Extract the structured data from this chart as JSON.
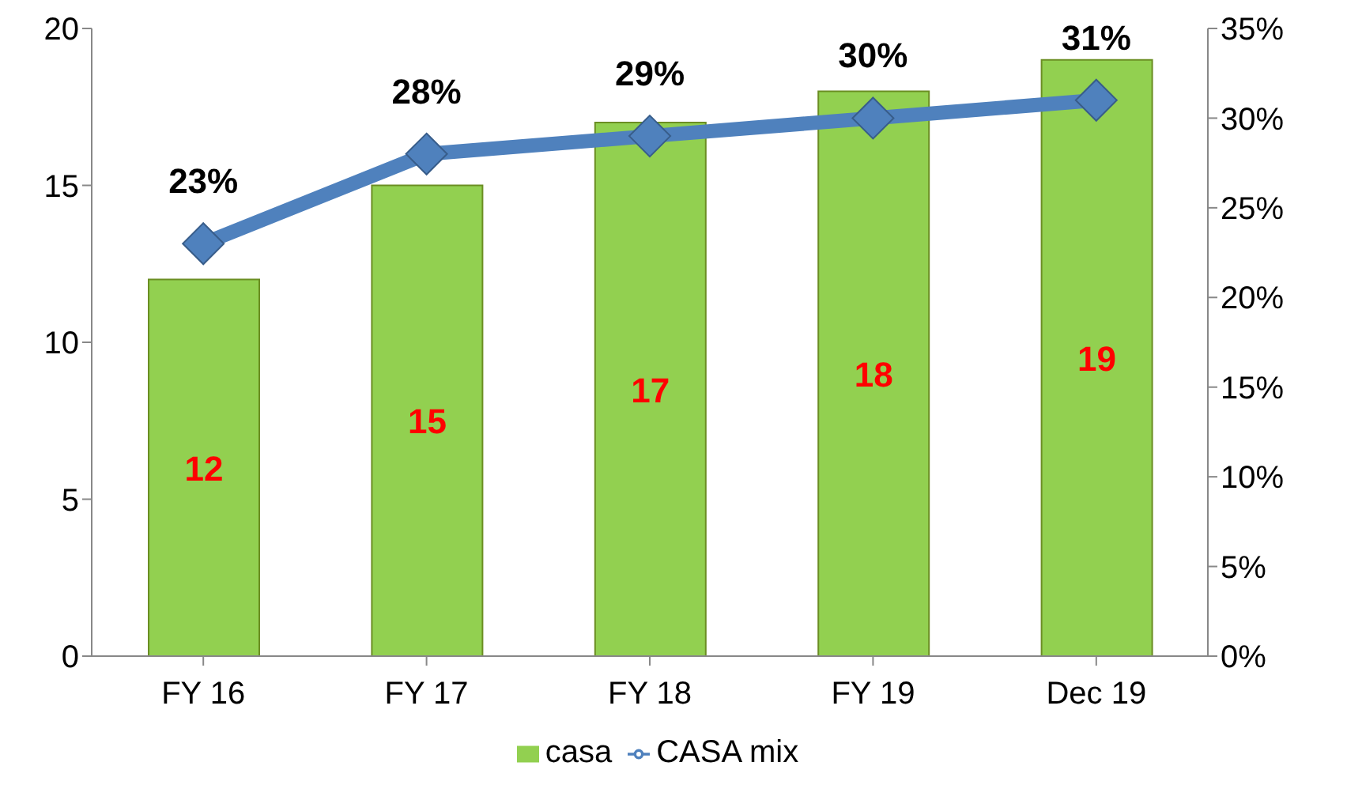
{
  "chart_data": {
    "type": "bar",
    "categories": [
      "FY 16",
      "FY 17",
      "FY 18",
      "FY 19",
      "Dec 19"
    ],
    "series": [
      {
        "name": "casa",
        "color": "#92d050",
        "values": [
          12,
          15,
          17,
          18,
          19
        ],
        "value_labels": [
          "12",
          "15",
          "17",
          "18",
          "19"
        ]
      },
      {
        "name": "CASA mix",
        "type": "line",
        "axis": "y2",
        "color": "#4f81bd",
        "marker": "diamond",
        "values": [
          23,
          28,
          29,
          30,
          31
        ],
        "value_labels": [
          "23%",
          "28%",
          "29%",
          "30%",
          "31%"
        ]
      }
    ],
    "ylim": [
      0,
      20
    ],
    "yticks": [
      0,
      5,
      10,
      15,
      20
    ],
    "y2lim": [
      0,
      35
    ],
    "y2ticks": [
      {
        "value": 0,
        "label": "0%"
      },
      {
        "value": 5,
        "label": "5%"
      },
      {
        "value": 10,
        "label": "10%"
      },
      {
        "value": 15,
        "label": "15%"
      },
      {
        "value": 20,
        "label": "20%"
      },
      {
        "value": 25,
        "label": "25%"
      },
      {
        "value": 30,
        "label": "30%"
      },
      {
        "value": 35,
        "label": "35%"
      }
    ],
    "grid": false,
    "legend": "bottom"
  }
}
